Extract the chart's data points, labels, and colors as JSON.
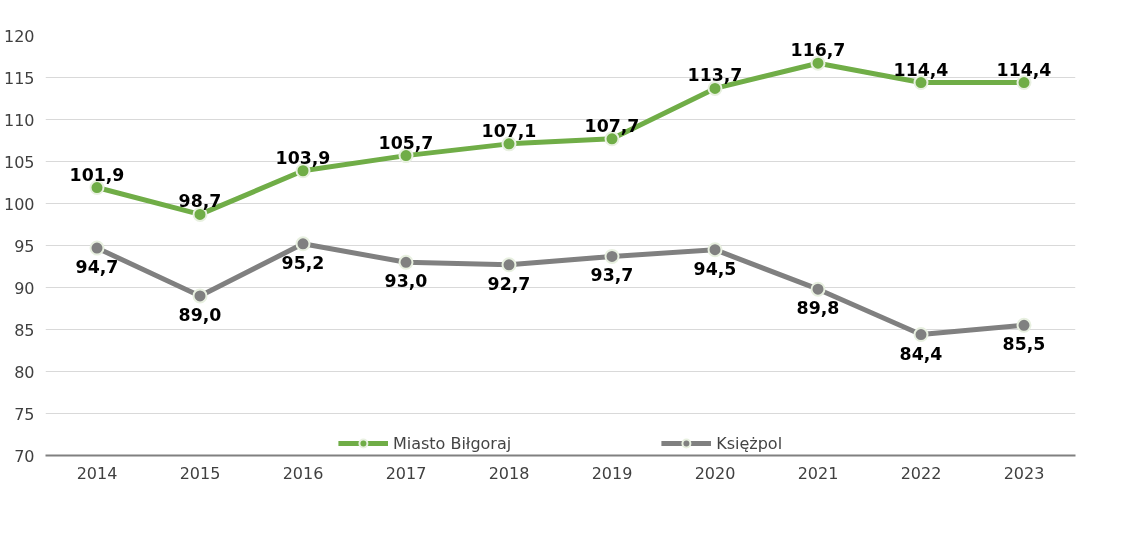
{
  "chart_data": {
    "type": "line",
    "categories": [
      "2014",
      "2015",
      "2016",
      "2017",
      "2018",
      "2019",
      "2020",
      "2021",
      "2022",
      "2023"
    ],
    "series": [
      {
        "name": "Miasto Biłgoraj",
        "color": "#70ad47",
        "values": [
          101.9,
          98.7,
          103.9,
          105.7,
          107.1,
          107.7,
          113.7,
          116.7,
          114.4,
          114.4
        ],
        "value_labels": [
          "101,9",
          "98,7",
          "103,9",
          "105,7",
          "107,1",
          "107,7",
          "113,7",
          "116,7",
          "114,4",
          "114,4"
        ]
      },
      {
        "name": "Księżpol",
        "color": "#808080",
        "values": [
          94.7,
          89.0,
          95.2,
          93.0,
          92.7,
          93.7,
          94.5,
          89.8,
          84.4,
          85.5
        ],
        "value_labels": [
          "94,7",
          "89,0",
          "95,2",
          "93,0",
          "92,7",
          "93,7",
          "94,5",
          "89,8",
          "84,4",
          "85,5"
        ]
      }
    ],
    "ylim": [
      70,
      120
    ],
    "yticks": [
      70,
      75,
      80,
      85,
      90,
      95,
      100,
      105,
      110,
      115,
      120
    ],
    "grid": "y",
    "legend": "bottom",
    "marker": "circle",
    "line_style": "solid"
  }
}
